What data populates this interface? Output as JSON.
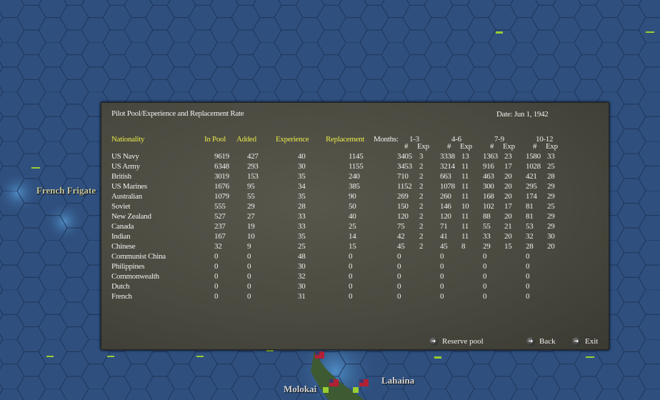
{
  "map": {
    "labels": [
      "French Frigate",
      "Molokai",
      "Lahaina"
    ]
  },
  "dialog": {
    "title": "Pilot Pool/Experience and Replacement Rate",
    "date": "Date: Jun 1, 1942",
    "headers": {
      "nationality": "Nationality",
      "in_pool": "In Pool",
      "added": "Added",
      "experience": "Experience",
      "replacement": "Replacement",
      "months": "Months:",
      "month_groups": [
        "1-3",
        "4-6",
        "7-9",
        "10-12"
      ],
      "count": "#",
      "exp": "Exp"
    },
    "rows": [
      [
        "US Navy",
        "9619",
        "427",
        "40",
        "1145",
        "3405",
        "3",
        "3338",
        "13",
        "1363",
        "23",
        "1580",
        "33"
      ],
      [
        "US Army",
        "6348",
        "293",
        "30",
        "1155",
        "3453",
        "2",
        "3214",
        "11",
        "916",
        "17",
        "1028",
        "25"
      ],
      [
        "British",
        "3019",
        "153",
        "35",
        "240",
        "710",
        "2",
        "663",
        "11",
        "463",
        "20",
        "421",
        "28"
      ],
      [
        "US Marines",
        "1676",
        "95",
        "34",
        "385",
        "1152",
        "2",
        "1078",
        "11",
        "300",
        "20",
        "295",
        "29"
      ],
      [
        "Australian",
        "1079",
        "55",
        "35",
        "90",
        "269",
        "2",
        "260",
        "11",
        "168",
        "20",
        "174",
        "29"
      ],
      [
        "Soviet",
        "555",
        "29",
        "28",
        "50",
        "150",
        "2",
        "146",
        "10",
        "102",
        "17",
        "81",
        "25"
      ],
      [
        "New Zealand",
        "527",
        "27",
        "33",
        "40",
        "120",
        "2",
        "120",
        "11",
        "88",
        "20",
        "81",
        "29"
      ],
      [
        "Canada",
        "237",
        "19",
        "33",
        "25",
        "75",
        "2",
        "71",
        "11",
        "55",
        "21",
        "53",
        "29"
      ],
      [
        "Indian",
        "167",
        "10",
        "35",
        "14",
        "42",
        "2",
        "41",
        "11",
        "33",
        "20",
        "32",
        "30"
      ],
      [
        "Chinese",
        "32",
        "9",
        "25",
        "15",
        "45",
        "2",
        "45",
        "8",
        "29",
        "15",
        "28",
        "20"
      ],
      [
        "Communist China",
        "0",
        "0",
        "48",
        "0",
        "0",
        "",
        "0",
        "",
        "0",
        "",
        "0",
        ""
      ],
      [
        "Philippines",
        "0",
        "0",
        "30",
        "0",
        "0",
        "",
        "0",
        "",
        "0",
        "",
        "0",
        ""
      ],
      [
        "Commonwealth",
        "0",
        "0",
        "32",
        "0",
        "0",
        "",
        "0",
        "",
        "0",
        "",
        "0",
        ""
      ],
      [
        "Dutch",
        "0",
        "0",
        "30",
        "0",
        "0",
        "",
        "0",
        "",
        "0",
        "",
        "0",
        ""
      ],
      [
        "French",
        "0",
        "0",
        "31",
        "0",
        "0",
        "",
        "0",
        "",
        "0",
        "",
        "0",
        ""
      ]
    ],
    "buttons": {
      "reserve_pool": "Reserve pool",
      "back": "Back",
      "exit": "Exit"
    }
  }
}
